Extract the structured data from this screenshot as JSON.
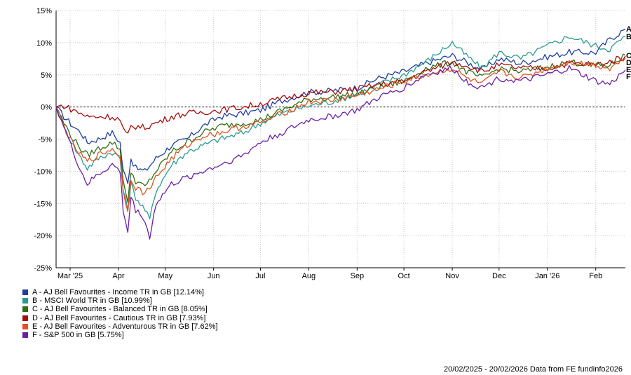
{
  "chart_data": {
    "type": "line",
    "date_range": "20/02/2025 - 20/02/2026",
    "source_note": "Data from FE fundinfo2026",
    "ylim": [
      -25,
      15
    ],
    "y_ticks": [
      15,
      10,
      5,
      0,
      -5,
      -10,
      -15,
      -20,
      -25
    ],
    "y_tick_labels": [
      "15%",
      "10%",
      "5%",
      "0%",
      "-5%",
      "-10%",
      "-15%",
      "-20%",
      "-25%"
    ],
    "x_range": [
      "2025-02-20",
      "2026-02-20"
    ],
    "x_ticks": [
      "2025-03-01",
      "2025-04-01",
      "2025-05-01",
      "2025-06-01",
      "2025-07-01",
      "2025-08-01",
      "2025-09-01",
      "2025-10-01",
      "2025-11-01",
      "2025-12-01",
      "2026-01-01",
      "2026-02-01"
    ],
    "x_tick_labels": [
      "Mar '25",
      "Apr",
      "May",
      "Jun",
      "Jul",
      "Aug",
      "Sep",
      "Oct",
      "Nov",
      "Dec",
      "Jan '26",
      "Feb"
    ],
    "grid": true,
    "zero_line": true,
    "legend_position": "bottom-left",
    "series": [
      {
        "key": "A",
        "name": "A - AJ Bell Favourites - Income TR in GB [12.14%]",
        "color": "#1f3f9e",
        "points": [
          [
            "2025-02-20",
            0
          ],
          [
            "2025-02-25",
            -1.5
          ],
          [
            "2025-03-03",
            -3
          ],
          [
            "2025-03-08",
            -4
          ],
          [
            "2025-03-12",
            -5.5
          ],
          [
            "2025-03-19",
            -5
          ],
          [
            "2025-03-28",
            -4
          ],
          [
            "2025-04-02",
            -5.5
          ],
          [
            "2025-04-04",
            -10
          ],
          [
            "2025-04-07",
            -11.5
          ],
          [
            "2025-04-09",
            -8
          ],
          [
            "2025-04-12",
            -9.5
          ],
          [
            "2025-04-18",
            -10
          ],
          [
            "2025-04-25",
            -8
          ],
          [
            "2025-05-05",
            -6
          ],
          [
            "2025-05-15",
            -5
          ],
          [
            "2025-05-25",
            -3
          ],
          [
            "2025-06-05",
            -1.5
          ],
          [
            "2025-06-20",
            -1
          ],
          [
            "2025-07-01",
            -0.5
          ],
          [
            "2025-07-15",
            1
          ],
          [
            "2025-08-01",
            2.3
          ],
          [
            "2025-08-15",
            2.5
          ],
          [
            "2025-09-01",
            3
          ],
          [
            "2025-09-15",
            4.5
          ],
          [
            "2025-10-01",
            5.5
          ],
          [
            "2025-10-15",
            6.8
          ],
          [
            "2025-11-01",
            8
          ],
          [
            "2025-11-10",
            7
          ],
          [
            "2025-11-20",
            5.8
          ],
          [
            "2025-12-01",
            7.5
          ],
          [
            "2025-12-15",
            6.8
          ],
          [
            "2026-01-01",
            7.8
          ],
          [
            "2026-01-15",
            8.5
          ],
          [
            "2026-02-01",
            8.5
          ],
          [
            "2026-02-10",
            10.5
          ],
          [
            "2026-02-20",
            12.14
          ]
        ]
      },
      {
        "key": "B",
        "name": "B - MSCI World TR in GB [10.99%]",
        "color": "#2b9b8f",
        "points": [
          [
            "2025-02-20",
            0
          ],
          [
            "2025-02-25",
            -3
          ],
          [
            "2025-03-03",
            -6
          ],
          [
            "2025-03-08",
            -8
          ],
          [
            "2025-03-12",
            -9.5
          ],
          [
            "2025-03-19",
            -8
          ],
          [
            "2025-03-28",
            -7
          ],
          [
            "2025-04-02",
            -8
          ],
          [
            "2025-04-04",
            -13
          ],
          [
            "2025-04-07",
            -16
          ],
          [
            "2025-04-09",
            -12
          ],
          [
            "2025-04-12",
            -14
          ],
          [
            "2025-04-18",
            -16
          ],
          [
            "2025-04-21",
            -17.5
          ],
          [
            "2025-04-25",
            -13
          ],
          [
            "2025-05-05",
            -9
          ],
          [
            "2025-05-15",
            -7
          ],
          [
            "2025-05-25",
            -6
          ],
          [
            "2025-06-05",
            -5
          ],
          [
            "2025-06-20",
            -4
          ],
          [
            "2025-07-01",
            -2.5
          ],
          [
            "2025-07-15",
            -1
          ],
          [
            "2025-08-01",
            0.2
          ],
          [
            "2025-08-15",
            0.8
          ],
          [
            "2025-09-01",
            2
          ],
          [
            "2025-09-15",
            3.5
          ],
          [
            "2025-10-01",
            5
          ],
          [
            "2025-10-15",
            7
          ],
          [
            "2025-11-01",
            10
          ],
          [
            "2025-11-10",
            8
          ],
          [
            "2025-11-20",
            6
          ],
          [
            "2025-12-01",
            8.5
          ],
          [
            "2025-12-15",
            7.5
          ],
          [
            "2026-01-01",
            9.5
          ],
          [
            "2026-01-15",
            11
          ],
          [
            "2026-02-01",
            9.5
          ],
          [
            "2026-02-10",
            9
          ],
          [
            "2026-02-20",
            10.99
          ]
        ]
      },
      {
        "key": "C",
        "name": "C - AJ Bell Favourites - Balanced TR in GB [8.05%]",
        "color": "#2f6f16",
        "points": [
          [
            "2025-02-20",
            0
          ],
          [
            "2025-02-25",
            -2.5
          ],
          [
            "2025-03-03",
            -5
          ],
          [
            "2025-03-08",
            -6.5
          ],
          [
            "2025-03-12",
            -7.5
          ],
          [
            "2025-03-19",
            -6.5
          ],
          [
            "2025-03-28",
            -5.5
          ],
          [
            "2025-04-02",
            -6.5
          ],
          [
            "2025-04-04",
            -11
          ],
          [
            "2025-04-07",
            -15
          ],
          [
            "2025-04-09",
            -10
          ],
          [
            "2025-04-12",
            -11.5
          ],
          [
            "2025-04-18",
            -12.5
          ],
          [
            "2025-04-25",
            -10
          ],
          [
            "2025-05-05",
            -7
          ],
          [
            "2025-05-15",
            -5.5
          ],
          [
            "2025-05-25",
            -4
          ],
          [
            "2025-06-05",
            -3
          ],
          [
            "2025-06-20",
            -2.5
          ],
          [
            "2025-07-01",
            -2
          ],
          [
            "2025-07-15",
            -0.5
          ],
          [
            "2025-08-01",
            1.2
          ],
          [
            "2025-08-15",
            1.5
          ],
          [
            "2025-09-01",
            2
          ],
          [
            "2025-09-15",
            3
          ],
          [
            "2025-10-01",
            4
          ],
          [
            "2025-10-15",
            6
          ],
          [
            "2025-11-01",
            7
          ],
          [
            "2025-11-10",
            5.5
          ],
          [
            "2025-11-20",
            4.5
          ],
          [
            "2025-12-01",
            6
          ],
          [
            "2025-12-15",
            5.5
          ],
          [
            "2026-01-01",
            6.2
          ],
          [
            "2026-01-15",
            7
          ],
          [
            "2026-02-01",
            6.5
          ],
          [
            "2026-02-10",
            6.5
          ],
          [
            "2026-02-20",
            8.05
          ]
        ]
      },
      {
        "key": "D",
        "name": "D - AJ Bell Favourites - Cautious TR in GB [7.93%]",
        "color": "#a50d0d",
        "points": [
          [
            "2025-02-20",
            0
          ],
          [
            "2025-02-25",
            0.2
          ],
          [
            "2025-03-03",
            -0.5
          ],
          [
            "2025-03-08",
            -1
          ],
          [
            "2025-03-12",
            -1.5
          ],
          [
            "2025-03-19",
            -1.5
          ],
          [
            "2025-03-28",
            -1.5
          ],
          [
            "2025-04-02",
            -2
          ],
          [
            "2025-04-04",
            -3.5
          ],
          [
            "2025-04-07",
            -4.5
          ],
          [
            "2025-04-09",
            -3
          ],
          [
            "2025-04-12",
            -3
          ],
          [
            "2025-04-18",
            -3.2
          ],
          [
            "2025-04-25",
            -2.5
          ],
          [
            "2025-05-05",
            -1.5
          ],
          [
            "2025-05-15",
            -1
          ],
          [
            "2025-05-25",
            -0.8
          ],
          [
            "2025-06-05",
            -0.5
          ],
          [
            "2025-06-20",
            0
          ],
          [
            "2025-07-01",
            0.5
          ],
          [
            "2025-07-15",
            1.3
          ],
          [
            "2025-08-01",
            2.2
          ],
          [
            "2025-08-15",
            2.3
          ],
          [
            "2025-09-01",
            2.8
          ],
          [
            "2025-09-15",
            3.5
          ],
          [
            "2025-10-01",
            4
          ],
          [
            "2025-10-15",
            5.5
          ],
          [
            "2025-11-01",
            7
          ],
          [
            "2025-11-10",
            6.5
          ],
          [
            "2025-11-20",
            5.5
          ],
          [
            "2025-12-01",
            6.5
          ],
          [
            "2025-12-15",
            6
          ],
          [
            "2026-01-01",
            6
          ],
          [
            "2026-01-15",
            6.8
          ],
          [
            "2026-02-01",
            6.5
          ],
          [
            "2026-02-10",
            7
          ],
          [
            "2026-02-20",
            7.93
          ]
        ]
      },
      {
        "key": "E",
        "name": "E - AJ Bell Favourites - Adventurous TR in GB [7.62%]",
        "color": "#e0531f",
        "points": [
          [
            "2025-02-20",
            0
          ],
          [
            "2025-02-25",
            -3
          ],
          [
            "2025-03-03",
            -6
          ],
          [
            "2025-03-08",
            -7.5
          ],
          [
            "2025-03-12",
            -8.5
          ],
          [
            "2025-03-19",
            -7.5
          ],
          [
            "2025-03-28",
            -6.5
          ],
          [
            "2025-04-02",
            -7.5
          ],
          [
            "2025-04-04",
            -13
          ],
          [
            "2025-04-07",
            -16
          ],
          [
            "2025-04-09",
            -11
          ],
          [
            "2025-04-12",
            -12.5
          ],
          [
            "2025-04-18",
            -13.5
          ],
          [
            "2025-04-25",
            -11
          ],
          [
            "2025-05-05",
            -8
          ],
          [
            "2025-05-15",
            -6
          ],
          [
            "2025-05-25",
            -4.5
          ],
          [
            "2025-06-05",
            -4
          ],
          [
            "2025-06-20",
            -3
          ],
          [
            "2025-07-01",
            -2.5
          ],
          [
            "2025-07-15",
            -1
          ],
          [
            "2025-08-01",
            0.8
          ],
          [
            "2025-08-15",
            1
          ],
          [
            "2025-09-01",
            1.8
          ],
          [
            "2025-09-15",
            2.8
          ],
          [
            "2025-10-01",
            4
          ],
          [
            "2025-10-15",
            5
          ],
          [
            "2025-11-01",
            6
          ],
          [
            "2025-11-10",
            4.5
          ],
          [
            "2025-11-20",
            3.5
          ],
          [
            "2025-12-01",
            5.5
          ],
          [
            "2025-12-15",
            4.5
          ],
          [
            "2026-01-01",
            6
          ],
          [
            "2026-01-15",
            7
          ],
          [
            "2026-02-01",
            6.5
          ],
          [
            "2026-02-10",
            6
          ],
          [
            "2026-02-20",
            7.62
          ]
        ]
      },
      {
        "key": "F",
        "name": "F - S&P 500 in GB [5.75%]",
        "color": "#6a1fa8",
        "points": [
          [
            "2025-02-20",
            0
          ],
          [
            "2025-02-25",
            -3
          ],
          [
            "2025-03-03",
            -7
          ],
          [
            "2025-03-08",
            -10
          ],
          [
            "2025-03-12",
            -12
          ],
          [
            "2025-03-19",
            -10.5
          ],
          [
            "2025-03-28",
            -9
          ],
          [
            "2025-04-02",
            -10
          ],
          [
            "2025-04-04",
            -16
          ],
          [
            "2025-04-07",
            -19.5
          ],
          [
            "2025-04-09",
            -14
          ],
          [
            "2025-04-12",
            -16
          ],
          [
            "2025-04-18",
            -17.5
          ],
          [
            "2025-04-21",
            -20.5
          ],
          [
            "2025-04-25",
            -15
          ],
          [
            "2025-05-05",
            -12
          ],
          [
            "2025-05-15",
            -11
          ],
          [
            "2025-05-25",
            -10
          ],
          [
            "2025-06-05",
            -9
          ],
          [
            "2025-06-20",
            -7.5
          ],
          [
            "2025-07-01",
            -5.5
          ],
          [
            "2025-07-15",
            -4
          ],
          [
            "2025-08-01",
            -2
          ],
          [
            "2025-08-15",
            -1.5
          ],
          [
            "2025-09-01",
            -0.5
          ],
          [
            "2025-09-15",
            1.5
          ],
          [
            "2025-10-01",
            3
          ],
          [
            "2025-10-15",
            5
          ],
          [
            "2025-11-01",
            6
          ],
          [
            "2025-11-10",
            4
          ],
          [
            "2025-11-20",
            3
          ],
          [
            "2025-12-01",
            4.5
          ],
          [
            "2025-12-15",
            4
          ],
          [
            "2026-01-01",
            5
          ],
          [
            "2026-01-15",
            6
          ],
          [
            "2026-02-01",
            4
          ],
          [
            "2026-02-10",
            3.5
          ],
          [
            "2026-02-20",
            5.75
          ]
        ]
      }
    ]
  }
}
